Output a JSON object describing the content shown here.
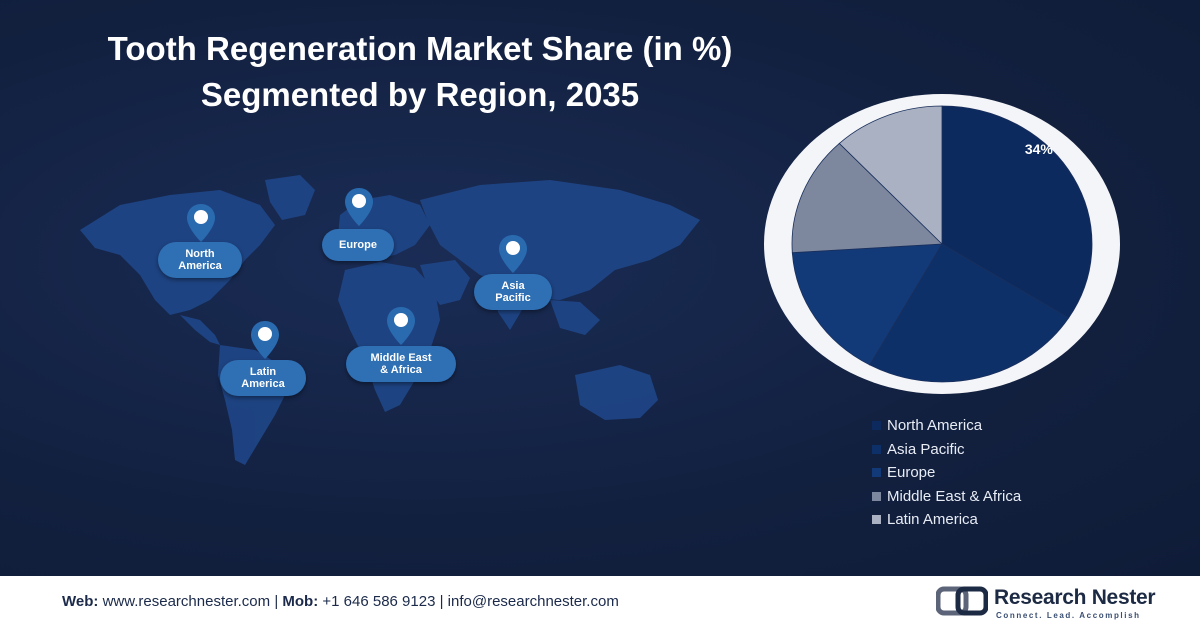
{
  "title": {
    "line1": "Tooth Regeneration Market Share (in %)",
    "line2": "Segmented by Region, 2035"
  },
  "map": {
    "labels": [
      {
        "id": "north-america",
        "line1": "North",
        "line2": "America"
      },
      {
        "id": "europe",
        "line1": "Europe",
        "line2": ""
      },
      {
        "id": "asia-pacific",
        "line1": "Asia",
        "line2": "Pacific"
      },
      {
        "id": "middle-east-africa",
        "line1": "Middle East",
        "line2": "& Africa"
      },
      {
        "id": "latin-america",
        "line1": "Latin",
        "line2": "America"
      }
    ],
    "colors": {
      "land": "#1f4585",
      "label": "#2f6fb3",
      "pin": "#2a6bb0"
    }
  },
  "chart_data": {
    "type": "pie",
    "title": "Tooth Regeneration Market Share (in %) Segmented by Region, 2035",
    "categories": [
      "North America",
      "Asia Pacific",
      "Europe",
      "Middle East & Africa",
      "Latin America"
    ],
    "values": [
      34,
      24,
      16,
      14,
      12
    ],
    "data_labels": [
      "34%",
      "",
      "",
      "",
      ""
    ],
    "colors": [
      "#0c2a5e",
      "#0e3068",
      "#123a78",
      "#7d889f",
      "#a9b1c3"
    ],
    "legend_position": "bottom-right",
    "start_angle_deg": 0,
    "direction": "clockwise"
  },
  "legend": {
    "items": [
      "North America",
      "Asia Pacific",
      "Europe",
      "Middle East & Africa",
      "Latin America"
    ]
  },
  "footer": {
    "web_label": "Web:",
    "web_value": "www.researchnester.com",
    "sep1": "|",
    "mob_label": "Mob:",
    "mob_value": "+1 646 586 9123",
    "sep2": "|",
    "email": "info@researchnester.com",
    "brand_name": "Research Nester",
    "brand_tagline": "Connect. Lead. Accomplish"
  }
}
